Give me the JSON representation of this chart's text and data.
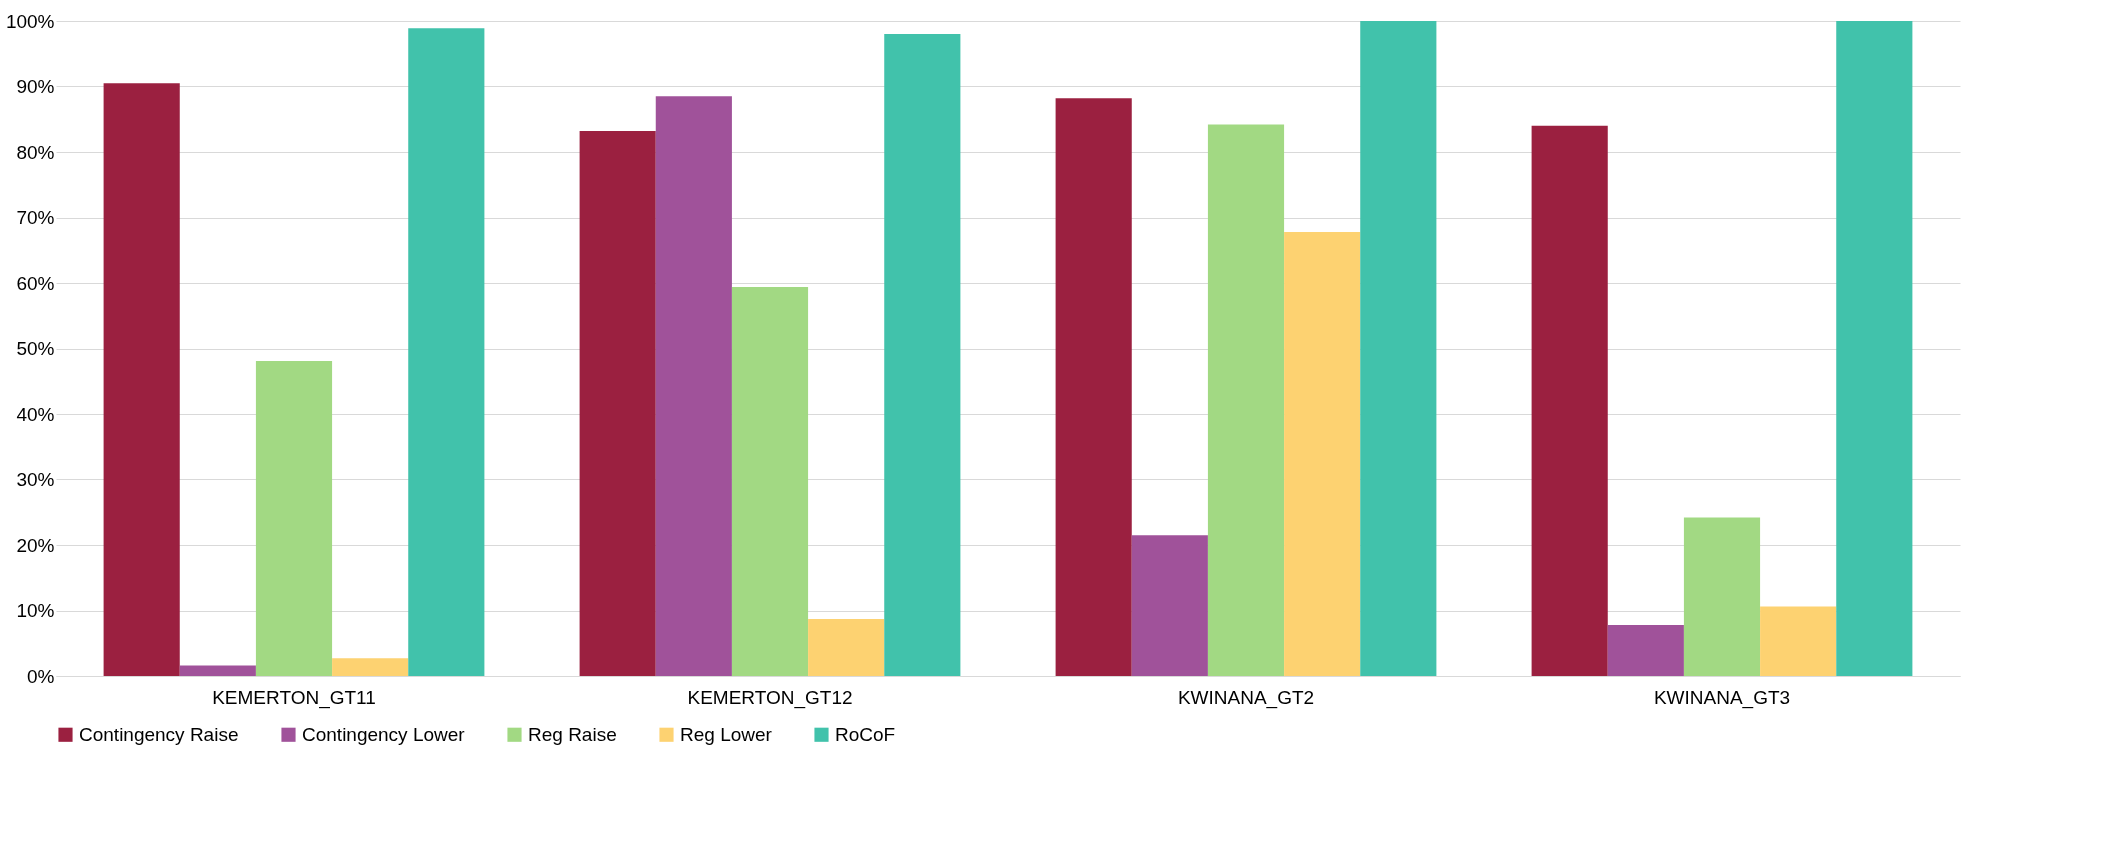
{
  "chart_data": {
    "type": "bar",
    "categories": [
      "KEMERTON_GT11",
      "KEMERTON_GT12",
      "KWINANA_GT2",
      "KWINANA_GT3"
    ],
    "series": [
      {
        "name": "Contingency Raise",
        "color": "#9b2040",
        "values": [
          90.5,
          83.2,
          88.2,
          84.0
        ]
      },
      {
        "name": "Contingency Lower",
        "color": "#a0529a",
        "values": [
          1.6,
          88.5,
          21.5,
          7.8
        ]
      },
      {
        "name": "Reg Raise",
        "color": "#a2d983",
        "values": [
          48.1,
          59.4,
          84.2,
          24.2
        ]
      },
      {
        "name": "Reg Lower",
        "color": "#fdd271",
        "values": [
          2.7,
          8.7,
          67.8,
          10.6
        ]
      },
      {
        "name": "RoCoF",
        "color": "#41c2ab",
        "values": [
          98.9,
          98.0,
          100,
          100
        ]
      }
    ],
    "ylim": [
      0,
      100
    ],
    "yticks": [
      {
        "value": 0,
        "label": "0%"
      },
      {
        "value": 10,
        "label": "10%"
      },
      {
        "value": 20,
        "label": "20%"
      },
      {
        "value": 30,
        "label": "30%"
      },
      {
        "value": 40,
        "label": "40%"
      },
      {
        "value": 50,
        "label": "50%"
      },
      {
        "value": 60,
        "label": "60%"
      },
      {
        "value": 70,
        "label": "70%"
      },
      {
        "value": 80,
        "label": "80%"
      },
      {
        "value": 90,
        "label": "90%"
      },
      {
        "value": 100,
        "label": "100%"
      }
    ],
    "grid": "y",
    "legend": "bottom"
  }
}
